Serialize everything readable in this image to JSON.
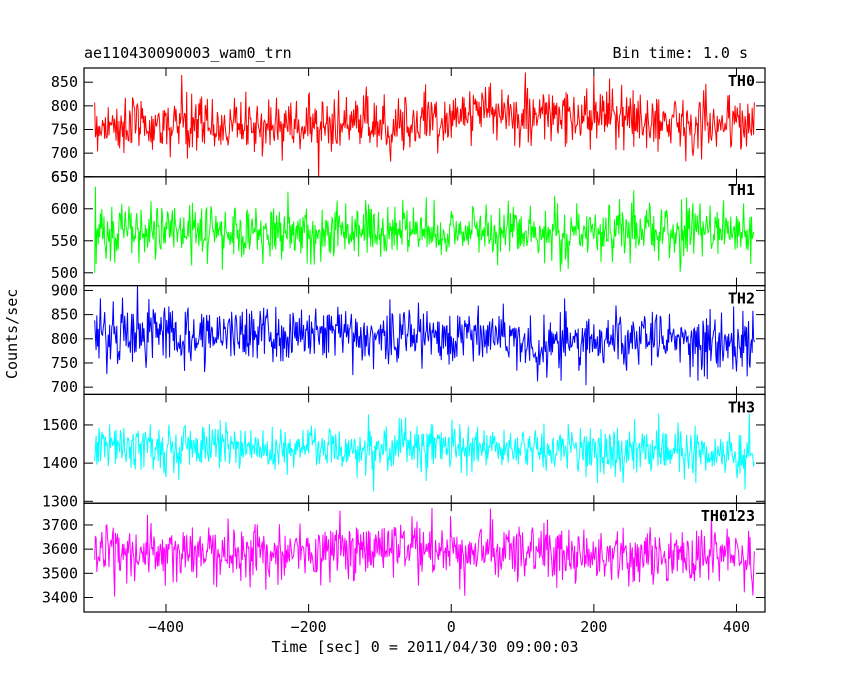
{
  "header": {
    "title": "ae110430090003_wam0_trn",
    "bin_time": "Bin time: 1.0 s"
  },
  "axes": {
    "ylabel": "Counts/sec",
    "xlabel": "Time [sec] 0 = 2011/04/30 09:00:03"
  },
  "chart_data": {
    "type": "line",
    "x_range": [
      -500,
      425
    ],
    "xlim": [
      -515,
      440
    ],
    "x_ticks": [
      -400,
      -200,
      0,
      200,
      400
    ],
    "x_tick_labels": [
      "−400",
      "−200",
      "0",
      "200",
      "400"
    ],
    "bin_time_s": 1.0,
    "grid": false,
    "panels": [
      {
        "name": "TH0",
        "color": "#ff0000",
        "ylim": [
          650,
          880
        ],
        "y_ticks": [
          650,
          700,
          750,
          800,
          850
        ],
        "mean_profile": [
          [
            -500,
            758
          ],
          [
            -150,
            760
          ],
          [
            -20,
            766
          ],
          [
            20,
            790
          ],
          [
            100,
            780
          ],
          [
            250,
            772
          ],
          [
            425,
            760
          ]
        ],
        "noise_sigma": 30
      },
      {
        "name": "TH1",
        "color": "#00ff00",
        "ylim": [
          480,
          650
        ],
        "y_ticks": [
          500,
          550,
          600,
          650
        ],
        "mean_profile": [
          [
            -500,
            565
          ],
          [
            425,
            565
          ]
        ],
        "noise_sigma": 22
      },
      {
        "name": "TH2",
        "color": "#0000ff",
        "ylim": [
          685,
          910
        ],
        "y_ticks": [
          700,
          750,
          800,
          850,
          900
        ],
        "mean_profile": [
          [
            -500,
            812
          ],
          [
            100,
            808
          ],
          [
            120,
            770
          ],
          [
            150,
            795
          ],
          [
            425,
            795
          ]
        ],
        "noise_sigma": 30
      },
      {
        "name": "TH3",
        "color": "#00ffff",
        "ylim": [
          1295,
          1580
        ],
        "y_ticks": [
          1300,
          1400,
          1500
        ],
        "mean_profile": [
          [
            -500,
            1445
          ],
          [
            0,
            1440
          ],
          [
            425,
            1425
          ]
        ],
        "noise_sigma": 32
      },
      {
        "name": "TH0123",
        "color": "#ff00ff",
        "ylim": [
          3340,
          3790
        ],
        "y_ticks": [
          3400,
          3500,
          3600,
          3700
        ],
        "mean_profile": [
          [
            -500,
            3580
          ],
          [
            0,
            3595
          ],
          [
            425,
            3560
          ]
        ],
        "noise_sigma": 60
      }
    ]
  }
}
